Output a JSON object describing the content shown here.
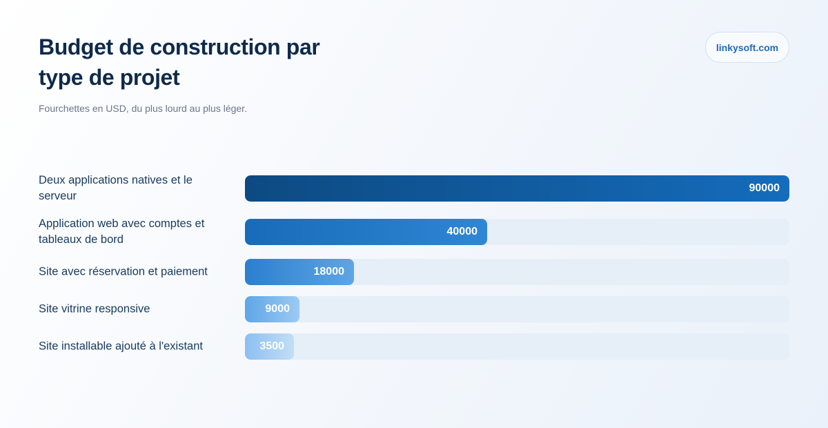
{
  "header": {
    "title": "Budget de construction par type de projet",
    "subtitle": "Fourchettes en USD, du plus lourd au plus léger.",
    "badge": "linkysoft.com"
  },
  "chart_data": {
    "type": "bar",
    "orientation": "horizontal",
    "title": "Budget de construction par type de projet",
    "subtitle": "Fourchettes en USD, du plus lourd au plus léger.",
    "categories": [
      "Deux applications natives et le serveur",
      "Application web avec comptes et tableaux de bord",
      "Site avec réservation et paiement",
      "Site vitrine responsive",
      "Site installable ajouté à l'existant"
    ],
    "values": [
      90000,
      40000,
      18000,
      9000,
      3500
    ],
    "xlim": [
      0,
      90000
    ],
    "grid": false,
    "data_labels": true,
    "colors": {
      "track": "#e6eef8",
      "bar_gradients": [
        [
          "#0d4a82",
          "#156cbc"
        ],
        [
          "#186bb9",
          "#2f86d4"
        ],
        [
          "#2b7fce",
          "#5ea5e6"
        ],
        [
          "#5ea6e6",
          "#9ccaf2"
        ],
        [
          "#8cbff0",
          "#c2def8"
        ]
      ]
    }
  }
}
